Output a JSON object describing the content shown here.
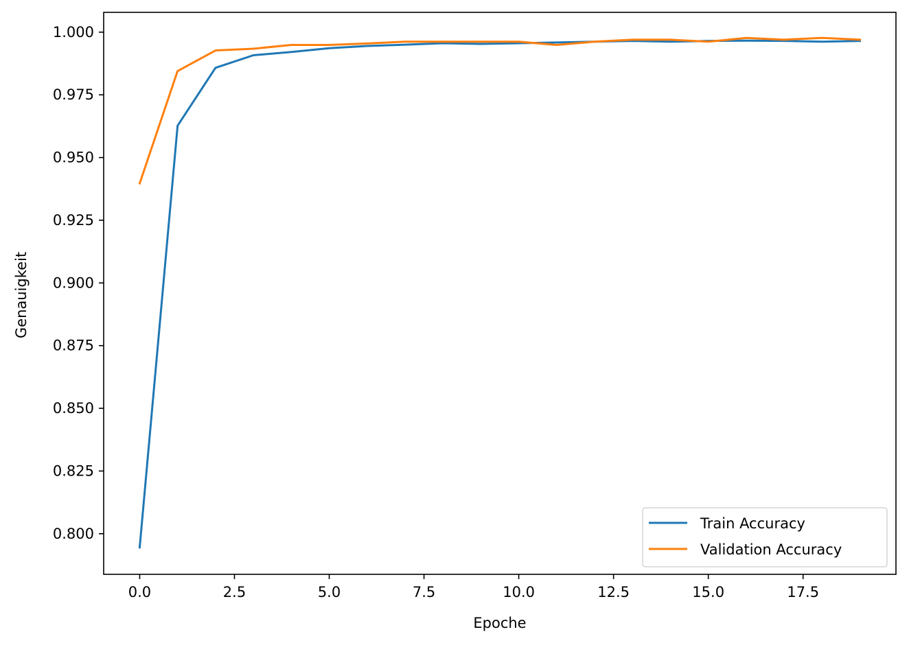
{
  "chart_data": {
    "type": "line",
    "title": "",
    "xlabel": "Epoche",
    "ylabel": "Genauigkeit",
    "xlim": [
      -0.95,
      19.95
    ],
    "ylim": [
      0.7838,
      1.0079
    ],
    "grid": false,
    "legend_position": "lower-right",
    "x_ticks": [
      0.0,
      2.5,
      5.0,
      7.5,
      10.0,
      12.5,
      15.0,
      17.5
    ],
    "x_tick_labels": [
      "0.0",
      "2.5",
      "5.0",
      "7.5",
      "10.0",
      "12.5",
      "15.0",
      "17.5"
    ],
    "y_ticks": [
      0.8,
      0.825,
      0.85,
      0.875,
      0.9,
      0.925,
      0.95,
      0.975,
      1.0
    ],
    "y_tick_labels": [
      "0.800",
      "0.825",
      "0.850",
      "0.875",
      "0.900",
      "0.925",
      "0.950",
      "0.975",
      "1.000"
    ],
    "x": [
      0,
      1,
      2,
      3,
      4,
      5,
      6,
      7,
      8,
      9,
      10,
      11,
      12,
      13,
      14,
      15,
      16,
      17,
      18,
      19
    ],
    "series": [
      {
        "name": "Train Accuracy",
        "color": "#1f77b4",
        "values": [
          0.7945,
          0.9627,
          0.9858,
          0.9908,
          0.9921,
          0.9936,
          0.9945,
          0.995,
          0.9956,
          0.9953,
          0.9956,
          0.9959,
          0.9962,
          0.9965,
          0.9962,
          0.9965,
          0.9966,
          0.9965,
          0.9962,
          0.9965
        ]
      },
      {
        "name": "Validation Accuracy",
        "color": "#ff7f0e",
        "values": [
          0.9397,
          0.9845,
          0.9927,
          0.9934,
          0.9949,
          0.9949,
          0.9955,
          0.9962,
          0.9962,
          0.9962,
          0.9962,
          0.9949,
          0.9962,
          0.997,
          0.997,
          0.9962,
          0.9977,
          0.997,
          0.9977,
          0.997
        ]
      }
    ]
  }
}
